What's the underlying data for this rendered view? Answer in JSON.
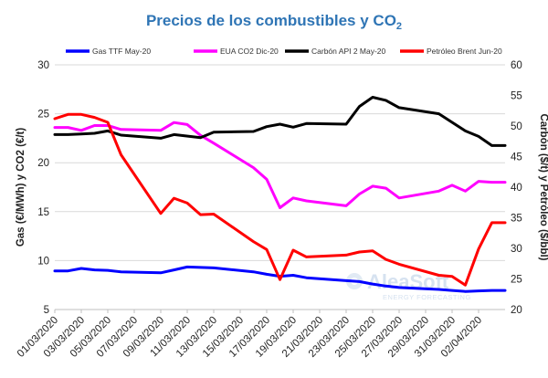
{
  "chart_data": {
    "type": "line",
    "title": "Precios de los combustibles y CO",
    "title_subscript": "2",
    "ylabel_left": "Gas (€/MWh) y CO2 (€/t)",
    "ylabel_right": "Carbón ($/t) y Petróleo ($/bbl)",
    "ylim_left": [
      5,
      30
    ],
    "ylim_right": [
      20,
      60
    ],
    "yticks_left": [
      "5",
      "10",
      "15",
      "20",
      "25",
      "30"
    ],
    "yticks_right": [
      "20",
      "25",
      "30",
      "35",
      "40",
      "45",
      "50",
      "55",
      "60"
    ],
    "xlim": [
      "01/03/2020",
      "04/04/2020"
    ],
    "xticks": [
      "01/03/2020",
      "03/03/2020",
      "05/03/2020",
      "07/03/2020",
      "09/03/2020",
      "11/03/2020",
      "13/03/2020",
      "15/03/2020",
      "17/03/2020",
      "19/03/2020",
      "21/03/2020",
      "23/03/2020",
      "25/03/2020",
      "27/03/2020",
      "29/03/2020",
      "31/03/2020",
      "02/04/2020"
    ],
    "grid": "horizontal",
    "legend_position": "top",
    "series": [
      {
        "name": "Gas TTF May-20",
        "axis": "left",
        "color": "#0000ff",
        "points": [
          [
            "01/03/2020",
            8.95
          ],
          [
            "02/03/2020",
            8.95
          ],
          [
            "03/03/2020",
            9.2
          ],
          [
            "04/03/2020",
            9.05
          ],
          [
            "05/03/2020",
            9.0
          ],
          [
            "06/03/2020",
            8.85
          ],
          [
            "09/03/2020",
            8.75
          ],
          [
            "10/03/2020",
            9.05
          ],
          [
            "11/03/2020",
            9.35
          ],
          [
            "13/03/2020",
            9.25
          ],
          [
            "16/03/2020",
            8.85
          ],
          [
            "17/03/2020",
            8.6
          ],
          [
            "18/03/2020",
            8.4
          ],
          [
            "19/03/2020",
            8.5
          ],
          [
            "20/03/2020",
            8.25
          ],
          [
            "23/03/2020",
            7.95
          ],
          [
            "24/03/2020",
            7.85
          ],
          [
            "25/03/2020",
            7.6
          ],
          [
            "26/03/2020",
            7.4
          ],
          [
            "27/03/2020",
            7.25
          ],
          [
            "30/03/2020",
            7.05
          ],
          [
            "31/03/2020",
            6.95
          ],
          [
            "01/04/2020",
            6.85
          ],
          [
            "02/04/2020",
            6.9
          ],
          [
            "03/04/2020",
            6.95
          ],
          [
            "04/04/2020",
            6.95
          ]
        ]
      },
      {
        "name": "EUA CO2 Dic-20",
        "axis": "left",
        "color": "#ff00ff",
        "points": [
          [
            "01/03/2020",
            23.6
          ],
          [
            "02/03/2020",
            23.6
          ],
          [
            "03/03/2020",
            23.3
          ],
          [
            "04/03/2020",
            23.8
          ],
          [
            "05/03/2020",
            23.8
          ],
          [
            "06/03/2020",
            23.4
          ],
          [
            "09/03/2020",
            23.3
          ],
          [
            "10/03/2020",
            24.1
          ],
          [
            "11/03/2020",
            23.9
          ],
          [
            "12/03/2020",
            22.8
          ],
          [
            "13/03/2020",
            22.0
          ],
          [
            "16/03/2020",
            19.5
          ],
          [
            "17/03/2020",
            18.3
          ],
          [
            "18/03/2020",
            15.4
          ],
          [
            "19/03/2020",
            16.4
          ],
          [
            "20/03/2020",
            16.1
          ],
          [
            "23/03/2020",
            15.6
          ],
          [
            "24/03/2020",
            16.8
          ],
          [
            "25/03/2020",
            17.6
          ],
          [
            "26/03/2020",
            17.4
          ],
          [
            "27/03/2020",
            16.4
          ],
          [
            "30/03/2020",
            17.1
          ],
          [
            "31/03/2020",
            17.7
          ],
          [
            "01/04/2020",
            17.1
          ],
          [
            "02/04/2020",
            18.1
          ],
          [
            "03/04/2020",
            18.0
          ],
          [
            "04/04/2020",
            18.0
          ]
        ]
      },
      {
        "name": "Carbón API 2 May-20",
        "axis": "right",
        "color": "#000000",
        "points": [
          [
            "01/03/2020",
            48.6
          ],
          [
            "02/03/2020",
            48.6
          ],
          [
            "03/03/2020",
            48.7
          ],
          [
            "04/03/2020",
            48.8
          ],
          [
            "05/03/2020",
            49.2
          ],
          [
            "06/03/2020",
            48.5
          ],
          [
            "09/03/2020",
            48.0
          ],
          [
            "10/03/2020",
            48.6
          ],
          [
            "12/03/2020",
            48.1
          ],
          [
            "13/03/2020",
            49.0
          ],
          [
            "16/03/2020",
            49.1
          ],
          [
            "17/03/2020",
            49.9
          ],
          [
            "18/03/2020",
            50.3
          ],
          [
            "19/03/2020",
            49.8
          ],
          [
            "20/03/2020",
            50.4
          ],
          [
            "23/03/2020",
            50.3
          ],
          [
            "24/03/2020",
            53.2
          ],
          [
            "25/03/2020",
            54.7
          ],
          [
            "26/03/2020",
            54.2
          ],
          [
            "27/03/2020",
            53.0
          ],
          [
            "30/03/2020",
            52.0
          ],
          [
            "31/03/2020",
            50.6
          ],
          [
            "01/04/2020",
            49.2
          ],
          [
            "02/04/2020",
            48.3
          ],
          [
            "03/04/2020",
            46.8
          ],
          [
            "04/04/2020",
            46.8
          ]
        ]
      },
      {
        "name": "Petróleo Brent Jun-20",
        "axis": "right",
        "color": "#ff0000",
        "points": [
          [
            "01/03/2020",
            51.2
          ],
          [
            "02/03/2020",
            51.9
          ],
          [
            "03/03/2020",
            51.9
          ],
          [
            "04/03/2020",
            51.4
          ],
          [
            "05/03/2020",
            50.6
          ],
          [
            "06/03/2020",
            45.3
          ],
          [
            "09/03/2020",
            35.7
          ],
          [
            "10/03/2020",
            38.2
          ],
          [
            "11/03/2020",
            37.4
          ],
          [
            "12/03/2020",
            35.5
          ],
          [
            "13/03/2020",
            35.6
          ],
          [
            "16/03/2020",
            31.1
          ],
          [
            "17/03/2020",
            29.8
          ],
          [
            "18/03/2020",
            24.9
          ],
          [
            "19/03/2020",
            29.7
          ],
          [
            "20/03/2020",
            28.6
          ],
          [
            "23/03/2020",
            28.9
          ],
          [
            "24/03/2020",
            29.4
          ],
          [
            "25/03/2020",
            29.6
          ],
          [
            "26/03/2020",
            28.2
          ],
          [
            "27/03/2020",
            27.4
          ],
          [
            "30/03/2020",
            25.6
          ],
          [
            "31/03/2020",
            25.4
          ],
          [
            "01/04/2020",
            24.0
          ],
          [
            "02/04/2020",
            29.9
          ],
          [
            "03/04/2020",
            34.2
          ],
          [
            "04/04/2020",
            34.2
          ]
        ]
      }
    ]
  },
  "watermark": {
    "brand": "AleaSoft",
    "tagline": "ENERGY FORECASTING"
  }
}
